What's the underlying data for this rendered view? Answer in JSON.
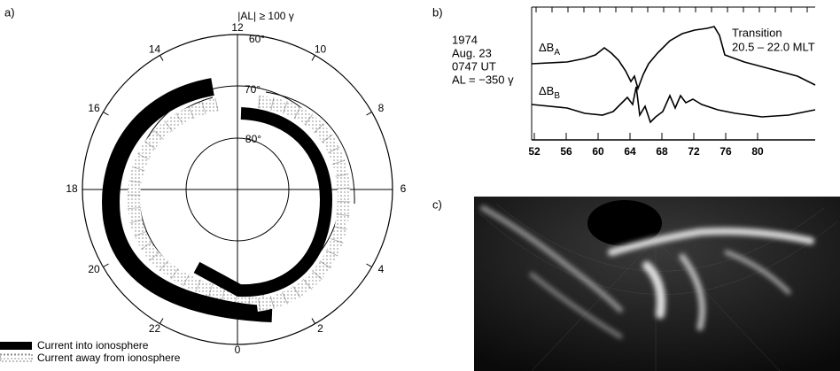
{
  "panels": {
    "a": {
      "label": "a)",
      "title": "|AL| ≥ 100 γ",
      "hours": [
        "12",
        "14",
        "16",
        "18",
        "20",
        "22",
        "0",
        "2",
        "4",
        "6",
        "8",
        "10"
      ],
      "latitudes": [
        "60°",
        "70°",
        "80°"
      ],
      "legend": [
        "Current into ionosphere",
        "Current away from ionosphere"
      ]
    },
    "b": {
      "label": "b)",
      "info": [
        "1974",
        "Aug. 23",
        "0747 UT",
        "AL = −350 γ"
      ],
      "traces": [
        {
          "main": "ΔB",
          "sub": "A"
        },
        {
          "main": "ΔB",
          "sub": "B"
        }
      ],
      "annotation": [
        "Transition",
        "20.5 – 22.0 MLT"
      ],
      "xticks": [
        "52",
        "56",
        "60",
        "64",
        "68",
        "72",
        "76",
        "80"
      ]
    },
    "c": {
      "label": "c)"
    }
  }
}
